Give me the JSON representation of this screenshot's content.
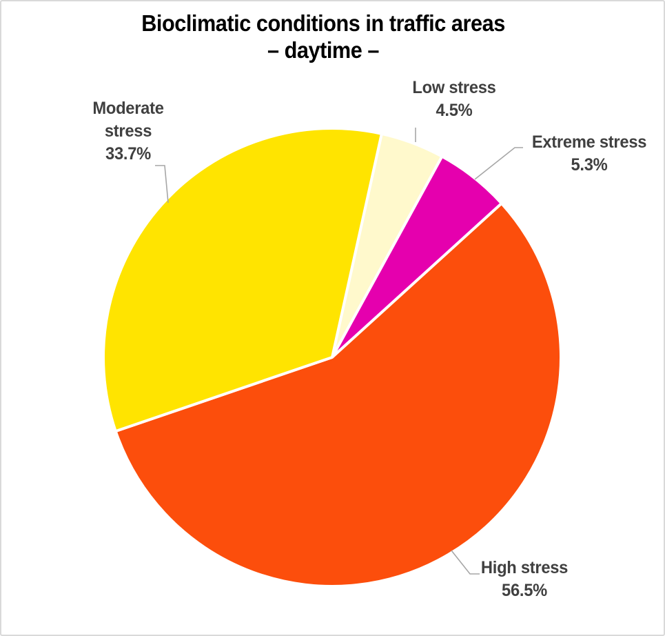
{
  "chart_data": {
    "type": "pie",
    "title": "Bioclimatic conditions in traffic areas – daytime –",
    "title_lines": [
      "Bioclimatic conditions in traffic areas",
      "– daytime –"
    ],
    "categories": [
      "Low stress",
      "Extreme stress",
      "High stress",
      "Moderate stress"
    ],
    "values": [
      4.5,
      5.3,
      56.5,
      33.7
    ],
    "unit": "%",
    "start_angle_deg": 12.5,
    "direction": "clockwise",
    "legend": "none",
    "slices": [
      {
        "label": "Low stress",
        "label_lines": [
          "Low stress"
        ],
        "value_pct": 4.5,
        "pct_label": "4.5%",
        "color": "#FFF9CC"
      },
      {
        "label": "Extreme stress",
        "label_lines": [
          "Extreme stress"
        ],
        "value_pct": 5.3,
        "pct_label": "5.3%",
        "color": "#E500AE"
      },
      {
        "label": "High stress",
        "label_lines": [
          "High stress"
        ],
        "value_pct": 56.5,
        "pct_label": "56.5%",
        "color": "#FC4E0C"
      },
      {
        "label": "Moderate stress",
        "label_lines": [
          "Moderate",
          "stress"
        ],
        "value_pct": 33.7,
        "pct_label": "33.7%",
        "color": "#FFE400"
      }
    ]
  },
  "style_colors": {
    "title_text": "#000000",
    "label_text": "#404040",
    "leader_line": "#A6A6A6",
    "slice_border": "#FFFFFF",
    "canvas_border": "#D9D9D9",
    "background": "#FFFFFF"
  }
}
